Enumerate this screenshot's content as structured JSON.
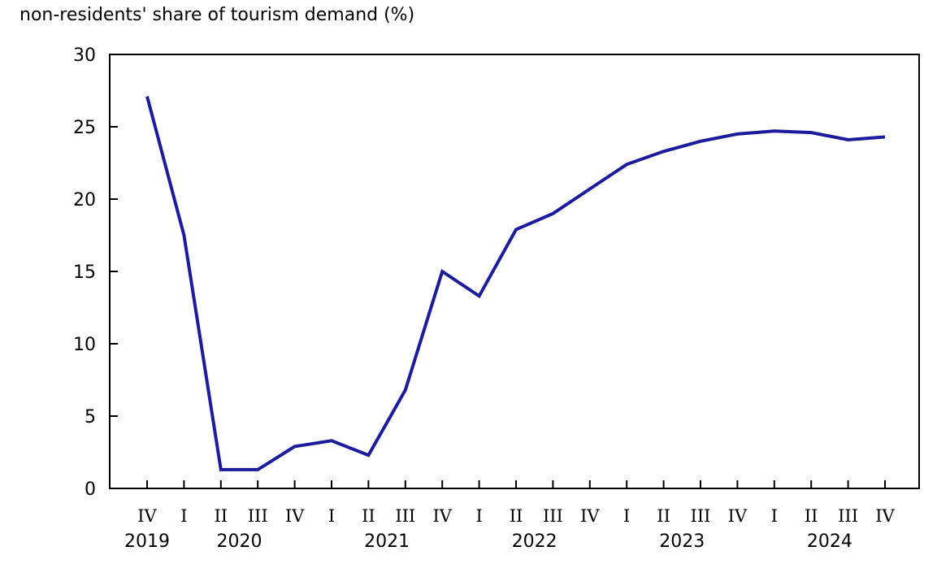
{
  "page": {
    "background": "#ffffff"
  },
  "chart_data": {
    "type": "line",
    "title": "non-residents' share of tourism demand (%)",
    "line_color": "#1b1b9e",
    "axis_color": "#000000",
    "text_color": "#000000",
    "grid": false,
    "legend": "none",
    "ylim": [
      0,
      30
    ],
    "y_ticks": [
      0,
      5,
      10,
      15,
      20,
      25,
      30
    ],
    "x_quarter_labels": [
      "IV",
      "I",
      "II",
      "III",
      "IV",
      "I",
      "II",
      "III",
      "IV",
      "I",
      "II",
      "III",
      "IV",
      "I",
      "II",
      "III",
      "IV",
      "I",
      "II",
      "III",
      "IV"
    ],
    "year_labels": [
      {
        "text": "2019",
        "tick_index": 0
      },
      {
        "text": "2020",
        "tick_index": 2.5
      },
      {
        "text": "2021",
        "tick_index": 6.5
      },
      {
        "text": "2022",
        "tick_index": 10.5
      },
      {
        "text": "2023",
        "tick_index": 14.5
      },
      {
        "text": "2024",
        "tick_index": 18.5
      }
    ],
    "values": [
      27.1,
      17.5,
      1.3,
      1.3,
      2.9,
      3.3,
      2.3,
      6.8,
      15.0,
      13.3,
      17.9,
      19.0,
      20.7,
      22.4,
      23.3,
      24.0,
      24.5,
      24.7,
      24.6,
      24.1,
      24.3
    ],
    "points": [
      {
        "period": "2019 IV",
        "value": 27.1
      },
      {
        "period": "2020 I",
        "value": 17.5
      },
      {
        "period": "2020 II",
        "value": 1.3
      },
      {
        "period": "2020 III",
        "value": 1.3
      },
      {
        "period": "2020 IV",
        "value": 2.9
      },
      {
        "period": "2021 I",
        "value": 3.3
      },
      {
        "period": "2021 II",
        "value": 2.3
      },
      {
        "period": "2021 III",
        "value": 6.8
      },
      {
        "period": "2021 IV",
        "value": 15.0
      },
      {
        "period": "2022 I",
        "value": 13.3
      },
      {
        "period": "2022 II",
        "value": 17.9
      },
      {
        "period": "2022 III",
        "value": 19.0
      },
      {
        "period": "2022 IV",
        "value": 20.7
      },
      {
        "period": "2023 I",
        "value": 22.4
      },
      {
        "period": "2023 II",
        "value": 23.3
      },
      {
        "period": "2023 III",
        "value": 24.0
      },
      {
        "period": "2023 IV",
        "value": 24.5
      },
      {
        "period": "2024 I",
        "value": 24.7
      },
      {
        "period": "2024 II",
        "value": 24.6
      },
      {
        "period": "2024 III",
        "value": 24.1
      },
      {
        "period": "2024 IV",
        "value": 24.3
      }
    ]
  }
}
